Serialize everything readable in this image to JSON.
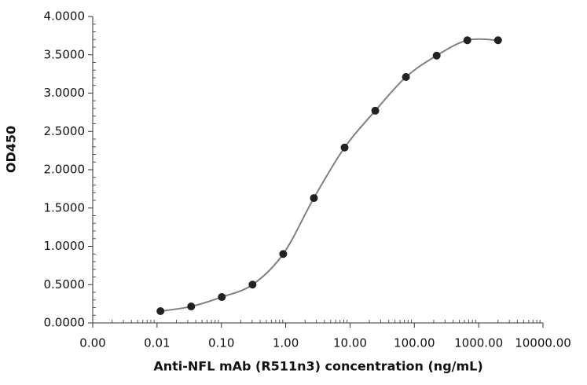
{
  "chart_data": {
    "type": "scatter",
    "x_label": "Anti-NFL mAb (R511n3) concentration (ng/mL)",
    "y_label": "OD450",
    "x_scale": "log",
    "xlim": [
      0.001,
      10000
    ],
    "xticks": [
      {
        "value": 0.001,
        "label": "0.00"
      },
      {
        "value": 0.01,
        "label": "0.01"
      },
      {
        "value": 0.1,
        "label": "0.10"
      },
      {
        "value": 1,
        "label": "1.00"
      },
      {
        "value": 10,
        "label": "10.00"
      },
      {
        "value": 100,
        "label": "100.00"
      },
      {
        "value": 1000,
        "label": "1000.00"
      },
      {
        "value": 10000,
        "label": "10000.00"
      }
    ],
    "ylim": [
      0,
      4
    ],
    "yticks": [
      {
        "value": 0,
        "label": "0.0000"
      },
      {
        "value": 0.5,
        "label": "0.5000"
      },
      {
        "value": 1,
        "label": "1.0000"
      },
      {
        "value": 1.5,
        "label": "1.5000"
      },
      {
        "value": 2,
        "label": "2.0000"
      },
      {
        "value": 2.5,
        "label": "2.5000"
      },
      {
        "value": 3,
        "label": "3.0000"
      },
      {
        "value": 3.5,
        "label": "3.5000"
      },
      {
        "value": 4,
        "label": "4.0000"
      }
    ],
    "series": [
      {
        "color": "#222222",
        "line_color": "#808080",
        "x": [
          0.0113,
          0.0339,
          0.1016,
          0.305,
          0.914,
          2.743,
          8.23,
          24.69,
          74.07,
          222.2,
          666.7,
          2000
        ],
        "values": [
          0.154,
          0.215,
          0.338,
          0.5,
          0.9,
          1.63,
          2.29,
          2.77,
          3.21,
          3.49,
          3.69,
          3.69
        ]
      }
    ]
  }
}
